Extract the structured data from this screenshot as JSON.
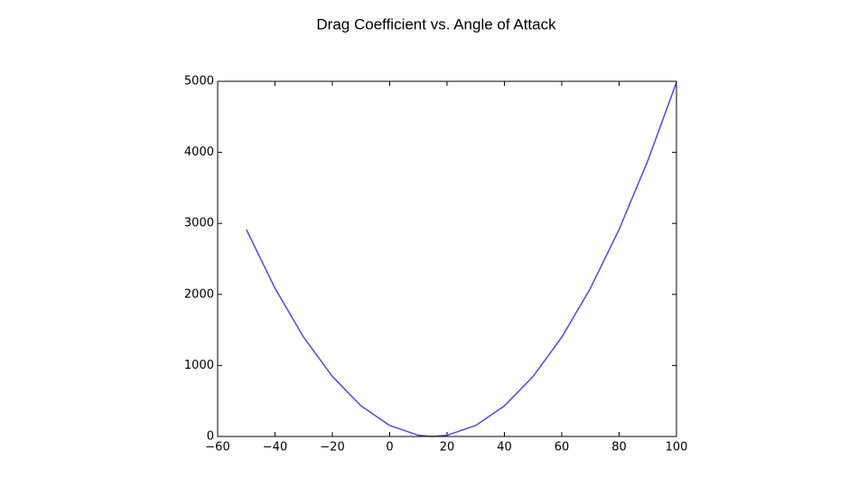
{
  "chart_data": {
    "type": "line",
    "title": "Drag Coefficient vs. Angle of Attack",
    "x": [
      -50,
      -40,
      -30,
      -20,
      -10,
      0,
      10,
      15,
      20,
      30,
      40,
      50,
      60,
      70,
      80,
      90,
      100
    ],
    "series": [
      {
        "color": "#4b4bf0",
        "values": [
          2915,
          2087,
          1397,
          845,
          431,
          155,
          17,
          0,
          17,
          155,
          431,
          845,
          1397,
          2087,
          2915,
          3881,
          4985
        ]
      }
    ],
    "xlim": [
      -60,
      100
    ],
    "xticks": [
      {
        "value": -60,
        "label": "−60"
      },
      {
        "value": -40,
        "label": "−40"
      },
      {
        "value": -20,
        "label": "−20"
      },
      0,
      20,
      40,
      60,
      80,
      100
    ],
    "ylim": [
      0,
      5000
    ],
    "yticks": [
      0,
      1000,
      2000,
      3000,
      4000,
      5000
    ],
    "grid": false
  }
}
